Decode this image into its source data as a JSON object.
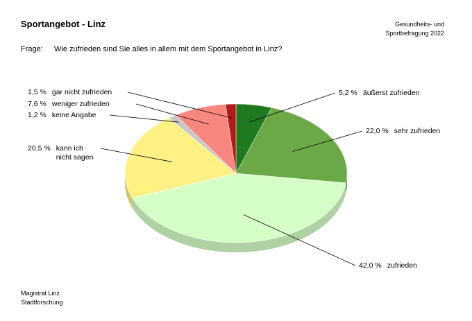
{
  "chart_data": {
    "type": "pie3d",
    "title": "Sportangebot - Linz",
    "source_note": "Gesundheits- und Sportbefragung 2022",
    "question_label": "Frage:",
    "question": "Wie zufrieden sind Sie alles in allem mit dem Sportangebot in Linz?",
    "footer": [
      "Magistrat Linz",
      "Stadtforschung"
    ],
    "categories": [
      "äußerst zufrieden",
      "sehr zufrieden",
      "zufrieden",
      "kann ich nicht sagen",
      "keine Angabe",
      "weniger zufrieden",
      "gar nicht zufrieden"
    ],
    "values": [
      5.2,
      22.0,
      42.0,
      20.5,
      1.2,
      7.6,
      1.5
    ],
    "value_labels": [
      "5,2 %",
      "22,0 %",
      "42,0 %",
      "20,5 %",
      "1,2 %",
      "7,6 %",
      "1,5 %"
    ],
    "colors": [
      "#1f7a1f",
      "#6aa945",
      "#d6ffc8",
      "#fff184",
      "#c8c8c8",
      "#f8877f",
      "#b31b1b"
    ]
  }
}
